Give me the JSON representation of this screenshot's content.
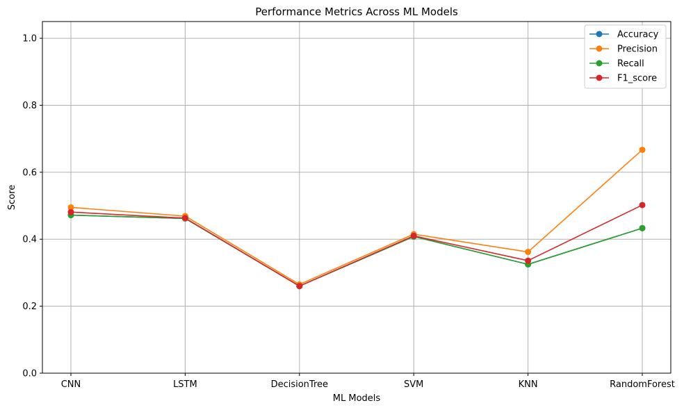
{
  "chart_data": {
    "type": "line",
    "title": "Performance Metrics Across ML Models",
    "xlabel": "ML Models",
    "ylabel": "Score",
    "categories": [
      "CNN",
      "LSTM",
      "DecisionTree",
      "SVM",
      "KNN",
      "RandomForest"
    ],
    "ylim": [
      0,
      1.05
    ],
    "yticks": [
      0.0,
      0.2,
      0.4,
      0.6,
      0.8,
      1.0
    ],
    "ytick_labels": [
      "0.0",
      "0.2",
      "0.4",
      "0.6",
      "0.8",
      "1.0"
    ],
    "grid": true,
    "legend_position": "top-right",
    "series": [
      {
        "name": "Accuracy",
        "color": "#1f77b4",
        "marker": "circle",
        "values": [
          0.472,
          0.462,
          0.26,
          0.408,
          0.325,
          0.433
        ]
      },
      {
        "name": "Precision",
        "color": "#ff7f0e",
        "marker": "circle",
        "values": [
          0.495,
          0.469,
          0.265,
          0.415,
          0.362,
          0.667
        ]
      },
      {
        "name": "Recall",
        "color": "#2ca02c",
        "marker": "circle",
        "values": [
          0.472,
          0.462,
          0.26,
          0.408,
          0.325,
          0.433
        ]
      },
      {
        "name": "F1_score",
        "color": "#d62728",
        "marker": "circle",
        "values": [
          0.481,
          0.463,
          0.26,
          0.41,
          0.336,
          0.502
        ]
      }
    ]
  }
}
